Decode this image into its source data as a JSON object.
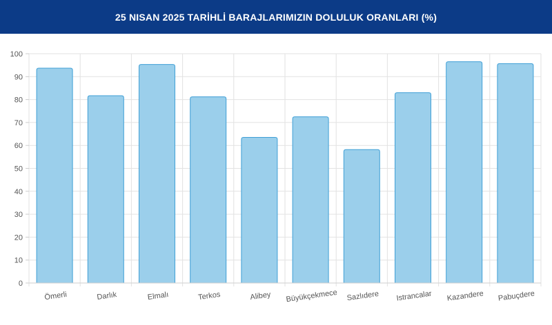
{
  "header": {
    "title": "25 NISAN 2025 TARİHLİ BARAJLARIMIZIN DOLULUK ORANLARI (%)"
  },
  "colors": {
    "header_bg": "#0c3b87",
    "bar_fill": "#9bcfeb",
    "bar_stroke": "#3f9fd6",
    "grid": "#e2e2e2"
  },
  "chart_data": {
    "type": "bar",
    "title": "25 NISAN 2025 TARİHLİ BARAJLARIMIZIN DOLULUK ORANLARI (%)",
    "categories": [
      "Ömerli",
      "Darlık",
      "Elmalı",
      "Terkos",
      "Alibey",
      "Büyükçekmece",
      "Sazlıdere",
      "Istrancalar",
      "Kazandere",
      "Pabuçdere"
    ],
    "values": [
      93.7,
      81.7,
      95.3,
      81.2,
      63.5,
      72.5,
      58.2,
      83.0,
      96.5,
      95.7
    ],
    "y_ticks": [
      "0",
      "10",
      "20",
      "30",
      "40",
      "50",
      "60",
      "70",
      "80",
      "90",
      "100"
    ],
    "ylim": [
      0,
      100
    ],
    "grid": true,
    "legend": "none"
  }
}
